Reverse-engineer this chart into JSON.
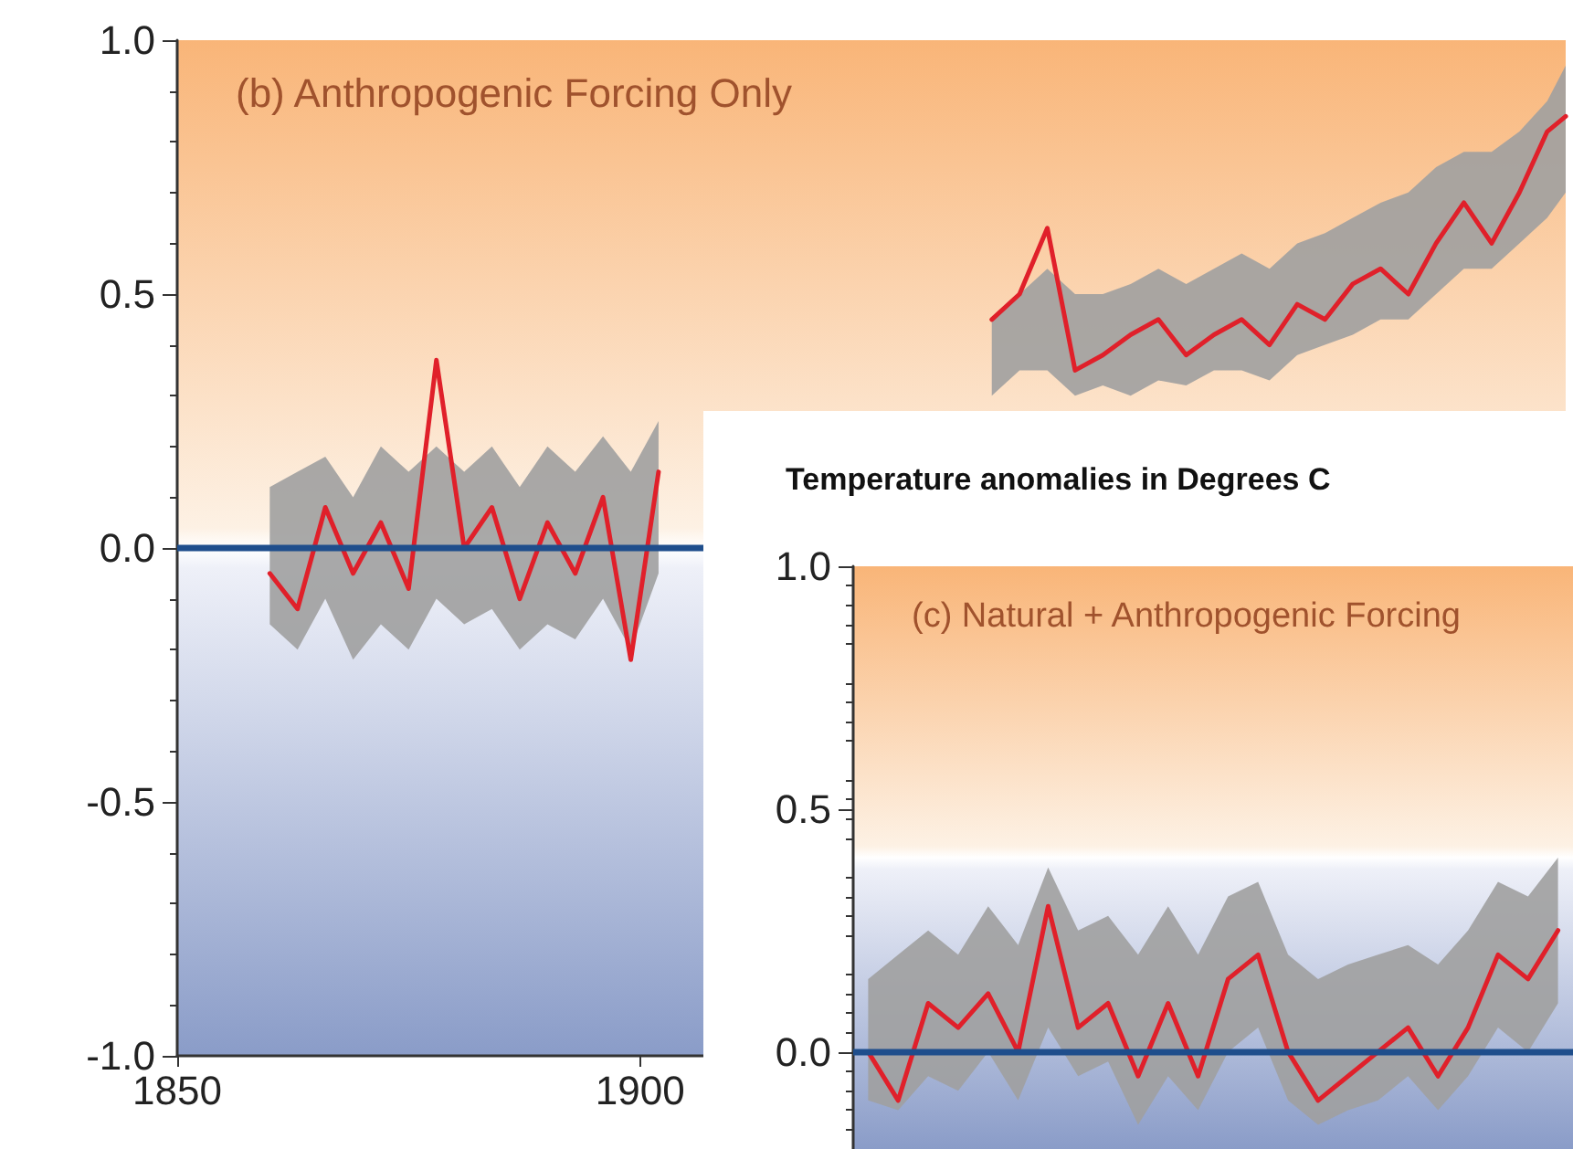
{
  "chart_data": [
    {
      "type": "line",
      "annotations": [
        "(b) Anthropogenic Forcing Only"
      ],
      "xlim": [
        1850,
        2000
      ],
      "xticks": [
        1850,
        1900
      ],
      "ylim": [
        -1.0,
        1.0
      ],
      "yticks": [
        {
          "value": -1,
          "label": "-1.0"
        },
        {
          "value": -0.5,
          "label": "-0.5"
        },
        {
          "value": 0,
          "label": "0.0"
        },
        {
          "value": 0.5,
          "label": "0.5"
        },
        {
          "value": 1,
          "label": "1.0"
        }
      ],
      "grid": false,
      "marker": "none",
      "line_style": "solid",
      "ref_lines": [
        {
          "axis": "y",
          "value": 0,
          "color": "#1f4e8c"
        }
      ],
      "series": [
        {
          "color": "#e0202a",
          "x": [
            1860,
            1863,
            1866,
            1869,
            1872,
            1875,
            1878,
            1881,
            1884,
            1887,
            1890,
            1893,
            1896,
            1899,
            1902,
            1906,
            1910,
            1914,
            1918,
            1922,
            1926,
            1930,
            1934,
            1938,
            1941,
            1944,
            1947,
            1950,
            1953,
            1956,
            1959,
            1962,
            1965,
            1968,
            1971,
            1974,
            1977,
            1980,
            1983,
            1986,
            1989,
            1992,
            1995,
            1998,
            2000
          ],
          "lower": [
            -0.15,
            -0.2,
            -0.1,
            -0.22,
            -0.15,
            -0.2,
            -0.1,
            -0.15,
            -0.12,
            -0.2,
            -0.15,
            -0.18,
            -0.1,
            -0.2,
            -0.05,
            null,
            null,
            null,
            null,
            null,
            null,
            null,
            null,
            0.3,
            0.35,
            0.35,
            0.3,
            0.32,
            0.3,
            0.33,
            0.32,
            0.35,
            0.35,
            0.33,
            0.38,
            0.4,
            0.42,
            0.45,
            0.45,
            0.5,
            0.55,
            0.55,
            0.6,
            0.65,
            0.7
          ],
          "upper": [
            0.12,
            0.15,
            0.18,
            0.1,
            0.2,
            0.15,
            0.2,
            0.15,
            0.2,
            0.12,
            0.2,
            0.15,
            0.22,
            0.15,
            0.25,
            null,
            null,
            null,
            null,
            null,
            null,
            null,
            null,
            0.45,
            0.5,
            0.55,
            0.5,
            0.5,
            0.52,
            0.55,
            0.52,
            0.55,
            0.58,
            0.55,
            0.6,
            0.62,
            0.65,
            0.68,
            0.7,
            0.75,
            0.78,
            0.78,
            0.82,
            0.88,
            0.95
          ],
          "values": [
            -0.05,
            -0.12,
            0.08,
            -0.05,
            0.05,
            -0.08,
            0.37,
            0.0,
            0.08,
            -0.1,
            0.05,
            -0.05,
            0.1,
            -0.22,
            0.15,
            null,
            null,
            null,
            null,
            null,
            null,
            null,
            null,
            0.45,
            0.5,
            0.63,
            0.35,
            0.38,
            0.42,
            0.45,
            0.38,
            0.42,
            0.45,
            0.4,
            0.48,
            0.45,
            0.52,
            0.55,
            0.5,
            0.6,
            0.68,
            0.6,
            0.7,
            0.82,
            0.85
          ]
        }
      ]
    },
    {
      "type": "line",
      "title": "Temperature anomalies in Degrees C",
      "annotations": [
        "(c) Natural + Anthropogenic Forcing"
      ],
      "categories": [
        null,
        null,
        null,
        null,
        null,
        null,
        null,
        null,
        null,
        null,
        null,
        null,
        null,
        null,
        null,
        null,
        null,
        null,
        null,
        null,
        null,
        null,
        null,
        null
      ],
      "ylim": [
        -0.2,
        1.0
      ],
      "yticks": [
        {
          "value": 0,
          "label": "0.0"
        },
        {
          "value": 0.5,
          "label": "0.5"
        },
        {
          "value": 1,
          "label": "1.0"
        }
      ],
      "tick_labels": "y",
      "grid": false,
      "marker": "none",
      "line_style": "solid",
      "ref_lines": [
        {
          "axis": "y",
          "value": 0,
          "color": "#1f4e8c"
        }
      ],
      "series": [
        {
          "color": "#e0202a",
          "lower": [
            -0.1,
            -0.12,
            -0.05,
            -0.08,
            0.0,
            -0.1,
            0.05,
            -0.05,
            -0.02,
            -0.15,
            -0.05,
            -0.12,
            0.0,
            0.05,
            -0.1,
            -0.15,
            -0.12,
            -0.1,
            -0.05,
            -0.12,
            -0.05,
            0.05,
            0.0,
            0.1
          ],
          "upper": [
            0.15,
            0.2,
            0.25,
            0.2,
            0.3,
            0.22,
            0.38,
            0.25,
            0.28,
            0.2,
            0.3,
            0.2,
            0.32,
            0.35,
            0.2,
            0.15,
            0.18,
            0.2,
            0.22,
            0.18,
            0.25,
            0.35,
            0.32,
            0.4
          ],
          "values": [
            0.0,
            -0.1,
            0.1,
            0.05,
            0.12,
            0.0,
            0.3,
            0.05,
            0.1,
            -0.05,
            0.1,
            -0.05,
            0.15,
            0.2,
            0.0,
            -0.1,
            -0.05,
            0.0,
            0.05,
            -0.05,
            0.05,
            0.2,
            0.15,
            0.25
          ]
        }
      ]
    }
  ]
}
